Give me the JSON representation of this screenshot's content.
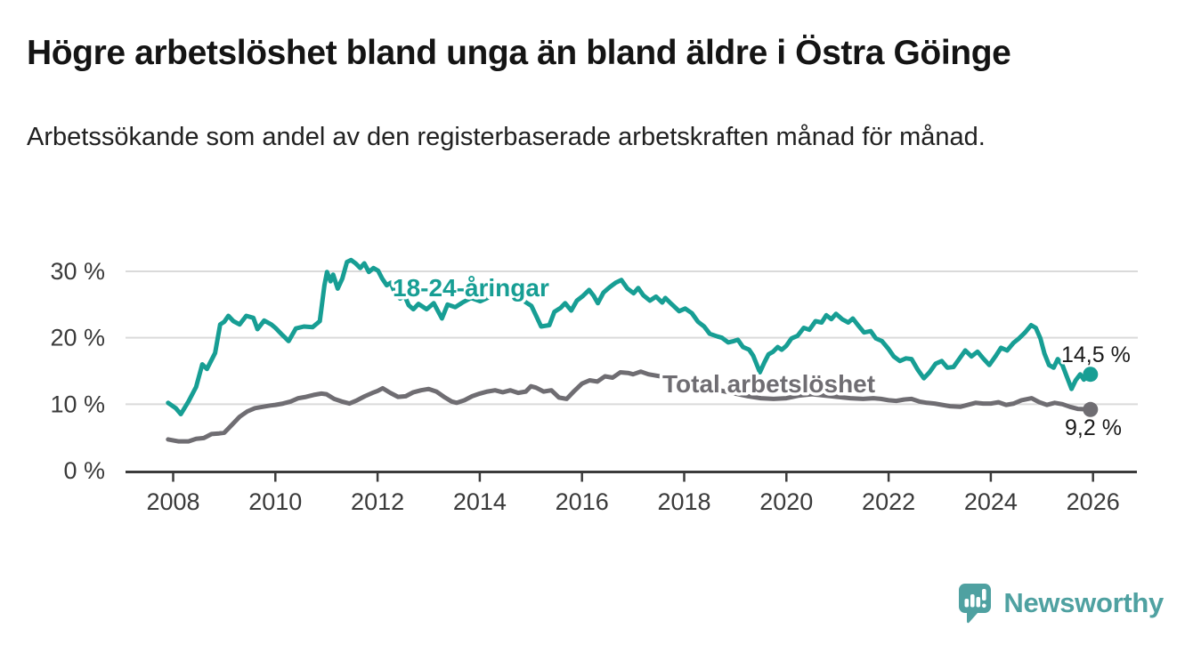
{
  "header": {
    "title": "Högre arbetslöshet bland unga än bland äldre i Östra Göinge",
    "subtitle": "Arbetssökande som andel av den registerbaserade arbetskraften månad för månad."
  },
  "colors": {
    "brand": "#4fa1a1",
    "young_series": "#179e94",
    "total_series": "#6f6d72",
    "grid": "#dadada",
    "axis": "#3b3b3b"
  },
  "chart_data": {
    "type": "line",
    "title": "Högre arbetslöshet bland unga än bland äldre i Östra Göinge",
    "subtitle": "Arbetssökande som andel av den registerbaserade arbetskraften månad för månad.",
    "xlabel": "",
    "ylabel": "",
    "xlim": [
      2007.1,
      2026.9
    ],
    "ylim": [
      0,
      33.3
    ],
    "grid": "horizontal",
    "legend_position": "inline-labels",
    "y_ticks": [
      {
        "value": 0,
        "label": "0 %"
      },
      {
        "value": 10,
        "label": "10 %"
      },
      {
        "value": 20,
        "label": "20 %"
      },
      {
        "value": 30,
        "label": "30 %"
      }
    ],
    "x_ticks": [
      {
        "value": 2008,
        "label": "2008"
      },
      {
        "value": 2010,
        "label": "2010"
      },
      {
        "value": 2012,
        "label": "2012"
      },
      {
        "value": 2014,
        "label": "2014"
      },
      {
        "value": 2016,
        "label": "2016"
      },
      {
        "value": 2018,
        "label": "2018"
      },
      {
        "value": 2020,
        "label": "2020"
      },
      {
        "value": 2022,
        "label": "2022"
      },
      {
        "value": 2024,
        "label": "2024"
      },
      {
        "value": 2026,
        "label": "2026"
      }
    ],
    "series": [
      {
        "name": "18-24-åringar",
        "color": "#179e94",
        "end_label": "14,5 %",
        "end_value": 14.5,
        "points": [
          [
            2007.9,
            10.2
          ],
          [
            2008.05,
            9.4
          ],
          [
            2008.15,
            8.5
          ],
          [
            2008.3,
            10.4
          ],
          [
            2008.45,
            12.6
          ],
          [
            2008.57,
            16.0
          ],
          [
            2008.66,
            15.3
          ],
          [
            2008.82,
            17.7
          ],
          [
            2008.92,
            22.0
          ],
          [
            2009.0,
            22.4
          ],
          [
            2009.08,
            23.3
          ],
          [
            2009.18,
            22.5
          ],
          [
            2009.3,
            22.0
          ],
          [
            2009.43,
            23.3
          ],
          [
            2009.57,
            23.0
          ],
          [
            2009.65,
            21.3
          ],
          [
            2009.78,
            22.6
          ],
          [
            2009.92,
            22.0
          ],
          [
            2010.0,
            21.5
          ],
          [
            2010.14,
            20.4
          ],
          [
            2010.26,
            19.5
          ],
          [
            2010.4,
            21.4
          ],
          [
            2010.56,
            21.7
          ],
          [
            2010.73,
            21.6
          ],
          [
            2010.87,
            22.5
          ],
          [
            2010.96,
            27.9
          ],
          [
            2011.01,
            29.9
          ],
          [
            2011.08,
            28.5
          ],
          [
            2011.13,
            29.5
          ],
          [
            2011.22,
            27.4
          ],
          [
            2011.31,
            28.9
          ],
          [
            2011.4,
            31.4
          ],
          [
            2011.48,
            31.7
          ],
          [
            2011.57,
            31.2
          ],
          [
            2011.66,
            30.5
          ],
          [
            2011.74,
            31.2
          ],
          [
            2011.83,
            29.9
          ],
          [
            2011.92,
            30.5
          ],
          [
            2012.01,
            30.1
          ],
          [
            2012.09,
            28.9
          ],
          [
            2012.18,
            27.9
          ],
          [
            2012.26,
            28.3
          ],
          [
            2012.35,
            26.5
          ],
          [
            2012.44,
            25.9
          ],
          [
            2012.53,
            26.3
          ],
          [
            2012.61,
            24.9
          ],
          [
            2012.7,
            24.3
          ],
          [
            2012.8,
            25.1
          ],
          [
            2012.96,
            24.3
          ],
          [
            2013.1,
            25.2
          ],
          [
            2013.26,
            22.9
          ],
          [
            2013.37,
            25.0
          ],
          [
            2013.52,
            24.6
          ],
          [
            2013.66,
            25.3
          ],
          [
            2013.83,
            26.0
          ],
          [
            2014.01,
            25.5
          ],
          [
            2014.18,
            26.1
          ],
          [
            2014.36,
            26.4
          ],
          [
            2014.57,
            26.3
          ],
          [
            2014.74,
            26.8
          ],
          [
            2014.85,
            25.6
          ],
          [
            2015.01,
            24.8
          ],
          [
            2015.11,
            23.2
          ],
          [
            2015.2,
            21.7
          ],
          [
            2015.36,
            21.9
          ],
          [
            2015.46,
            23.9
          ],
          [
            2015.58,
            24.5
          ],
          [
            2015.67,
            25.2
          ],
          [
            2015.79,
            24.1
          ],
          [
            2015.9,
            25.6
          ],
          [
            2016.02,
            26.3
          ],
          [
            2016.14,
            27.2
          ],
          [
            2016.23,
            26.3
          ],
          [
            2016.31,
            25.2
          ],
          [
            2016.42,
            26.8
          ],
          [
            2016.54,
            27.6
          ],
          [
            2016.66,
            28.3
          ],
          [
            2016.77,
            28.7
          ],
          [
            2016.89,
            27.4
          ],
          [
            2017.01,
            26.7
          ],
          [
            2017.1,
            27.5
          ],
          [
            2017.2,
            26.4
          ],
          [
            2017.33,
            25.6
          ],
          [
            2017.45,
            26.2
          ],
          [
            2017.57,
            25.3
          ],
          [
            2017.63,
            26.0
          ],
          [
            2017.75,
            25.1
          ],
          [
            2017.9,
            24.0
          ],
          [
            2018.02,
            24.4
          ],
          [
            2018.15,
            23.7
          ],
          [
            2018.27,
            22.4
          ],
          [
            2018.39,
            21.7
          ],
          [
            2018.5,
            20.6
          ],
          [
            2018.65,
            20.2
          ],
          [
            2018.74,
            20.0
          ],
          [
            2018.86,
            19.3
          ],
          [
            2018.97,
            19.5
          ],
          [
            2019.05,
            19.7
          ],
          [
            2019.15,
            18.6
          ],
          [
            2019.27,
            18.2
          ],
          [
            2019.35,
            17.3
          ],
          [
            2019.48,
            14.8
          ],
          [
            2019.57,
            16.3
          ],
          [
            2019.65,
            17.5
          ],
          [
            2019.74,
            17.9
          ],
          [
            2019.83,
            18.6
          ],
          [
            2019.91,
            18.2
          ],
          [
            2020.0,
            18.8
          ],
          [
            2020.1,
            19.9
          ],
          [
            2020.22,
            20.3
          ],
          [
            2020.34,
            21.5
          ],
          [
            2020.45,
            21.2
          ],
          [
            2020.57,
            22.5
          ],
          [
            2020.69,
            22.3
          ],
          [
            2020.78,
            23.4
          ],
          [
            2020.88,
            22.8
          ],
          [
            2020.97,
            23.6
          ],
          [
            2021.09,
            22.8
          ],
          [
            2021.21,
            22.3
          ],
          [
            2021.3,
            22.9
          ],
          [
            2021.4,
            21.9
          ],
          [
            2021.52,
            20.8
          ],
          [
            2021.65,
            21.0
          ],
          [
            2021.75,
            19.9
          ],
          [
            2021.87,
            19.5
          ],
          [
            2022.0,
            18.3
          ],
          [
            2022.1,
            17.2
          ],
          [
            2022.22,
            16.5
          ],
          [
            2022.34,
            16.9
          ],
          [
            2022.45,
            16.8
          ],
          [
            2022.57,
            15.2
          ],
          [
            2022.69,
            13.9
          ],
          [
            2022.8,
            14.8
          ],
          [
            2022.92,
            16.1
          ],
          [
            2023.04,
            16.5
          ],
          [
            2023.15,
            15.5
          ],
          [
            2023.27,
            15.6
          ],
          [
            2023.39,
            16.9
          ],
          [
            2023.5,
            18.1
          ],
          [
            2023.62,
            17.2
          ],
          [
            2023.74,
            17.9
          ],
          [
            2023.85,
            16.9
          ],
          [
            2023.97,
            15.9
          ],
          [
            2024.09,
            17.2
          ],
          [
            2024.2,
            18.5
          ],
          [
            2024.32,
            18.1
          ],
          [
            2024.44,
            19.2
          ],
          [
            2024.55,
            19.9
          ],
          [
            2024.67,
            20.8
          ],
          [
            2024.79,
            21.9
          ],
          [
            2024.88,
            21.5
          ],
          [
            2024.97,
            19.9
          ],
          [
            2025.05,
            17.6
          ],
          [
            2025.14,
            15.9
          ],
          [
            2025.23,
            15.5
          ],
          [
            2025.31,
            16.8
          ],
          [
            2025.4,
            15.9
          ],
          [
            2025.49,
            14.1
          ],
          [
            2025.58,
            12.3
          ],
          [
            2025.66,
            13.6
          ],
          [
            2025.75,
            14.5
          ],
          [
            2025.82,
            13.7
          ],
          [
            2025.95,
            14.5
          ]
        ]
      },
      {
        "name": "Total arbetslöshet",
        "color": "#6f6d72",
        "end_label": "9,2 %",
        "end_value": 9.2,
        "points": [
          [
            2007.9,
            4.7
          ],
          [
            2008.1,
            4.4
          ],
          [
            2008.3,
            4.4
          ],
          [
            2008.45,
            4.8
          ],
          [
            2008.6,
            4.9
          ],
          [
            2008.75,
            5.5
          ],
          [
            2008.9,
            5.6
          ],
          [
            2009.0,
            5.7
          ],
          [
            2009.15,
            6.9
          ],
          [
            2009.3,
            8.1
          ],
          [
            2009.45,
            8.9
          ],
          [
            2009.6,
            9.4
          ],
          [
            2009.75,
            9.6
          ],
          [
            2009.9,
            9.8
          ],
          [
            2010.0,
            9.9
          ],
          [
            2010.15,
            10.1
          ],
          [
            2010.3,
            10.4
          ],
          [
            2010.45,
            10.9
          ],
          [
            2010.6,
            11.1
          ],
          [
            2010.75,
            11.4
          ],
          [
            2010.9,
            11.6
          ],
          [
            2011.0,
            11.5
          ],
          [
            2011.15,
            10.8
          ],
          [
            2011.3,
            10.4
          ],
          [
            2011.45,
            10.1
          ],
          [
            2011.6,
            10.6
          ],
          [
            2011.75,
            11.2
          ],
          [
            2011.9,
            11.7
          ],
          [
            2012.0,
            12.0
          ],
          [
            2012.1,
            12.4
          ],
          [
            2012.25,
            11.7
          ],
          [
            2012.4,
            11.1
          ],
          [
            2012.55,
            11.2
          ],
          [
            2012.7,
            11.8
          ],
          [
            2012.85,
            12.1
          ],
          [
            2013.0,
            12.3
          ],
          [
            2013.15,
            11.9
          ],
          [
            2013.3,
            11.1
          ],
          [
            2013.45,
            10.4
          ],
          [
            2013.55,
            10.2
          ],
          [
            2013.7,
            10.6
          ],
          [
            2013.85,
            11.2
          ],
          [
            2014.0,
            11.6
          ],
          [
            2014.15,
            11.9
          ],
          [
            2014.3,
            12.1
          ],
          [
            2014.45,
            11.8
          ],
          [
            2014.6,
            12.1
          ],
          [
            2014.75,
            11.7
          ],
          [
            2014.9,
            11.9
          ],
          [
            2015.0,
            12.7
          ],
          [
            2015.1,
            12.5
          ],
          [
            2015.25,
            11.9
          ],
          [
            2015.4,
            12.1
          ],
          [
            2015.55,
            11.0
          ],
          [
            2015.7,
            10.8
          ],
          [
            2015.85,
            12.0
          ],
          [
            2016.0,
            13.1
          ],
          [
            2016.15,
            13.6
          ],
          [
            2016.3,
            13.4
          ],
          [
            2016.45,
            14.2
          ],
          [
            2016.6,
            14.0
          ],
          [
            2016.75,
            14.8
          ],
          [
            2016.9,
            14.7
          ],
          [
            2017.0,
            14.5
          ],
          [
            2017.15,
            14.9
          ],
          [
            2017.3,
            14.5
          ],
          [
            2017.45,
            14.3
          ],
          [
            2017.6,
            14.1
          ],
          [
            2017.8,
            13.8
          ],
          [
            2018.0,
            13.4
          ],
          [
            2018.25,
            12.9
          ],
          [
            2018.5,
            12.4
          ],
          [
            2018.75,
            12.0
          ],
          [
            2019.0,
            11.6
          ],
          [
            2019.25,
            11.2
          ],
          [
            2019.5,
            10.9
          ],
          [
            2019.75,
            10.8
          ],
          [
            2020.0,
            10.9
          ],
          [
            2020.25,
            11.3
          ],
          [
            2020.5,
            11.5
          ],
          [
            2020.75,
            11.3
          ],
          [
            2021.0,
            11.1
          ],
          [
            2021.25,
            10.9
          ],
          [
            2021.5,
            10.8
          ],
          [
            2021.7,
            10.9
          ],
          [
            2021.85,
            10.8
          ],
          [
            2022.0,
            10.6
          ],
          [
            2022.15,
            10.5
          ],
          [
            2022.3,
            10.7
          ],
          [
            2022.45,
            10.8
          ],
          [
            2022.6,
            10.4
          ],
          [
            2022.75,
            10.2
          ],
          [
            2022.9,
            10.1
          ],
          [
            2023.05,
            9.9
          ],
          [
            2023.2,
            9.7
          ],
          [
            2023.4,
            9.6
          ],
          [
            2023.55,
            9.9
          ],
          [
            2023.7,
            10.2
          ],
          [
            2023.85,
            10.1
          ],
          [
            2024.0,
            10.1
          ],
          [
            2024.15,
            10.3
          ],
          [
            2024.3,
            9.9
          ],
          [
            2024.45,
            10.1
          ],
          [
            2024.6,
            10.6
          ],
          [
            2024.8,
            10.9
          ],
          [
            2024.95,
            10.3
          ],
          [
            2025.1,
            9.9
          ],
          [
            2025.25,
            10.2
          ],
          [
            2025.4,
            10.0
          ],
          [
            2025.55,
            9.6
          ],
          [
            2025.7,
            9.3
          ],
          [
            2025.95,
            9.2
          ]
        ]
      }
    ]
  },
  "footer": {
    "brand": "Newsworthy"
  }
}
